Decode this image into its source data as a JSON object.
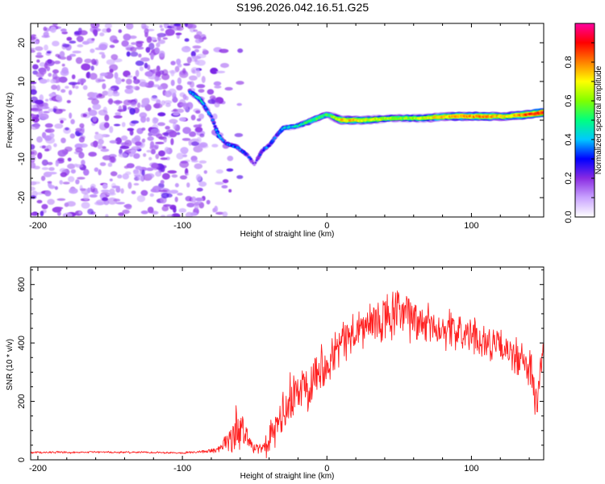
{
  "title": "S196.2026.042.16.51.G25",
  "chart_data": [
    {
      "type": "heatmap",
      "xlabel": "Height of straight line (km)",
      "ylabel": "Frequency (Hz)",
      "xlim": [
        -205,
        150
      ],
      "ylim": [
        -25,
        25
      ],
      "x_ticks": [
        -200,
        -100,
        0,
        100
      ],
      "y_ticks": [
        -20,
        -10,
        0,
        10,
        20
      ],
      "colorbar": {
        "label": "Normalized spectral amplitude",
        "range": [
          0,
          1
        ],
        "ticks": [
          0.0,
          0.2,
          0.4,
          0.6,
          0.8
        ],
        "colormap": [
          "#ffffff",
          "#c9a3ff",
          "#8a2be2",
          "#0000ff",
          "#00c8ff",
          "#00ff80",
          "#80ff00",
          "#ffff00",
          "#ff8000",
          "#ff0000",
          "#ff00a0"
        ]
      },
      "noise_region_x": [
        -205,
        -85
      ],
      "track": [
        {
          "x": -95,
          "f": 7.5,
          "a": 0.35
        },
        {
          "x": -88,
          "f": 5.5,
          "a": 0.45
        },
        {
          "x": -80,
          "f": 1.0,
          "a": 0.3
        },
        {
          "x": -75,
          "f": -4.0,
          "a": 0.4
        },
        {
          "x": -70,
          "f": -6.0,
          "a": 0.3
        },
        {
          "x": -62,
          "f": -7.0,
          "a": 0.35
        },
        {
          "x": -55,
          "f": -9.0,
          "a": 0.3
        },
        {
          "x": -50,
          "f": -11.5,
          "a": 0.2
        },
        {
          "x": -45,
          "f": -8.0,
          "a": 0.3
        },
        {
          "x": -40,
          "f": -6.5,
          "a": 0.35
        },
        {
          "x": -35,
          "f": -4.0,
          "a": 0.3
        },
        {
          "x": -30,
          "f": -2.0,
          "a": 0.4
        },
        {
          "x": -20,
          "f": -1.5,
          "a": 0.45
        },
        {
          "x": -10,
          "f": 0.0,
          "a": 0.55
        },
        {
          "x": 0,
          "f": 1.5,
          "a": 0.5
        },
        {
          "x": 10,
          "f": 0.0,
          "a": 0.75
        },
        {
          "x": 25,
          "f": 0.0,
          "a": 0.7
        },
        {
          "x": 45,
          "f": 0.5,
          "a": 0.6
        },
        {
          "x": 65,
          "f": 0.5,
          "a": 0.65
        },
        {
          "x": 85,
          "f": 1.0,
          "a": 0.75
        },
        {
          "x": 105,
          "f": 1.0,
          "a": 0.8
        },
        {
          "x": 125,
          "f": 1.0,
          "a": 0.7
        },
        {
          "x": 140,
          "f": 1.5,
          "a": 0.85
        },
        {
          "x": 150,
          "f": 2.0,
          "a": 0.9
        }
      ]
    },
    {
      "type": "line",
      "xlabel": "Height of straight line (km)",
      "ylabel": "SNR (10 * v/v)",
      "xlim": [
        -205,
        150
      ],
      "ylim": [
        0,
        660
      ],
      "x_ticks": [
        -200,
        -100,
        0,
        100
      ],
      "y_ticks": [
        0,
        200,
        400,
        600
      ],
      "series": [
        {
          "name": "SNR",
          "color": "#ff2020",
          "x": [
            -205,
            -190,
            -175,
            -160,
            -145,
            -130,
            -115,
            -100,
            -85,
            -75,
            -70,
            -66,
            -62,
            -58,
            -54,
            -50,
            -45,
            -40,
            -35,
            -30,
            -25,
            -20,
            -15,
            -10,
            -5,
            0,
            5,
            10,
            15,
            20,
            25,
            30,
            35,
            40,
            45,
            50,
            55,
            60,
            65,
            70,
            75,
            80,
            85,
            90,
            95,
            100,
            105,
            110,
            115,
            120,
            125,
            130,
            135,
            140,
            145,
            150
          ],
          "values": [
            25,
            26,
            24,
            27,
            25,
            26,
            25,
            24,
            28,
            35,
            60,
            80,
            110,
            95,
            70,
            45,
            30,
            60,
            110,
            160,
            200,
            230,
            260,
            290,
            310,
            340,
            370,
            400,
            420,
            440,
            450,
            460,
            470,
            480,
            490,
            500,
            495,
            480,
            470,
            465,
            455,
            450,
            445,
            440,
            430,
            420,
            415,
            405,
            395,
            385,
            370,
            355,
            335,
            320,
            180,
            390
          ],
          "jitter_amplitude": [
            4,
            4,
            4,
            4,
            4,
            4,
            4,
            4,
            6,
            15,
            30,
            80,
            120,
            60,
            40,
            25,
            30,
            60,
            90,
            100,
            110,
            110,
            110,
            110,
            100,
            100,
            90,
            90,
            90,
            90,
            100,
            100,
            100,
            110,
            110,
            110,
            100,
            100,
            90,
            90,
            90,
            80,
            80,
            80,
            80,
            80,
            80,
            70,
            70,
            70,
            70,
            80,
            80,
            90,
            120,
            60
          ]
        }
      ]
    }
  ]
}
